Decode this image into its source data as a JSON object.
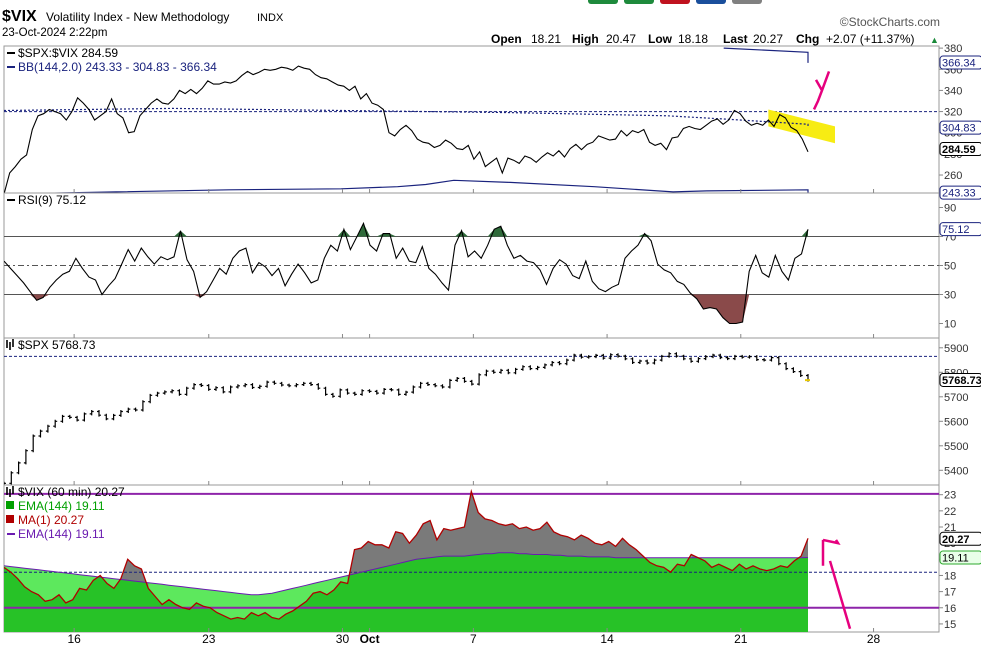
{
  "header": {
    "symbol": "$VIX",
    "name": "Volatility Index - New Methodology",
    "exchange": "INDX",
    "datetime": "23-Oct-2024 2:22pm",
    "brand": "©StockCharts.com",
    "quote": {
      "open_label": "Open",
      "open": "18.21",
      "high_label": "High",
      "high": "20.47",
      "low_label": "Low",
      "low": "18.18",
      "last_label": "Last",
      "last": "20.27",
      "chg_label": "Chg",
      "chg": "+2.07 (+11.37%)",
      "chg_arrow": "▲"
    },
    "strip_colors": [
      "#1e8a3c",
      "#1e8a3c",
      "#c0121f",
      "#1a4f9c",
      "#808080"
    ]
  },
  "chart_data": [
    {
      "type": "line",
      "panel": "ratio",
      "legend": [
        {
          "text": "$SPX:$VIX 284.59",
          "color": "#000000",
          "marker": "line"
        },
        {
          "text": "BB(144,2.0) 243.33 - 304.83 - 366.34",
          "color": "#1a237e",
          "marker": "line"
        }
      ],
      "ylim": [
        243,
        382
      ],
      "yticks": [
        260,
        280,
        300,
        320,
        340,
        360,
        380
      ],
      "price_tags": [
        {
          "label": "366.34",
          "value": 366.34,
          "style": "outline"
        },
        {
          "label": "304.83",
          "value": 304.83,
          "style": "outline"
        },
        {
          "label": "284.59",
          "value": 284.59,
          "style": "bold"
        },
        {
          "label": "243.33",
          "value": 243.33,
          "style": "outline"
        }
      ],
      "ref_line": 320,
      "series": [
        {
          "role": "SPX:VIX",
          "color": "#000000",
          "values": [
            242,
            262,
            268,
            275,
            279,
            303,
            316,
            318,
            322,
            320,
            318,
            312,
            320,
            333,
            328,
            322,
            312,
            316,
            320,
            332,
            318,
            314,
            300,
            301,
            316,
            322,
            328,
            332,
            328,
            327,
            332,
            340,
            337,
            341,
            337,
            342,
            349,
            346,
            346,
            348,
            347,
            349,
            354,
            358,
            355,
            357,
            360,
            359,
            360,
            362,
            361,
            359,
            363,
            361,
            360,
            355,
            352,
            351,
            348,
            345,
            344,
            340,
            344,
            332,
            337,
            328,
            326,
            322,
            300,
            297,
            303,
            307,
            302,
            294,
            291,
            290,
            286,
            288,
            293,
            290,
            285,
            284,
            288,
            275,
            282,
            268,
            272,
            276,
            262,
            276,
            274,
            271,
            278,
            276,
            272,
            277,
            281,
            278,
            283,
            277,
            285,
            289,
            284,
            289,
            291,
            297,
            295,
            293,
            294,
            302,
            297,
            302,
            300,
            303,
            291,
            288,
            290,
            284,
            295,
            296,
            304,
            306,
            304,
            303,
            307,
            311,
            313,
            308,
            312,
            321,
            318,
            311,
            307,
            309,
            307,
            312,
            306,
            317,
            314,
            305,
            302,
            294,
            282
          ]
        },
        {
          "role": "BB upper",
          "color": "#1a237e",
          "values": [
            [
              128,
              380
            ],
            [
              143,
              376
            ],
            [
              143,
              366
            ]
          ]
        },
        {
          "role": "BB middle",
          "color": "#1a237e",
          "dashed": true,
          "values": [
            [
              0,
              321
            ],
            [
              30,
              323
            ],
            [
              60,
              321
            ],
            [
              90,
              319
            ],
            [
              118,
              316
            ],
            [
              128,
              313
            ],
            [
              143,
              308
            ],
            [
              143,
              305
            ]
          ]
        },
        {
          "role": "BB lower",
          "color": "#1a237e",
          "values": [
            [
              0,
              242
            ],
            [
              20,
              244
            ],
            [
              40,
              246
            ],
            [
              60,
              247
            ],
            [
              70,
              249
            ],
            [
              75,
              251
            ],
            [
              80,
              255
            ],
            [
              90,
              253
            ],
            [
              105,
              249
            ],
            [
              119,
              244
            ],
            [
              125,
              245
            ],
            [
              143,
              246
            ],
            [
              143,
              243
            ]
          ]
        }
      ],
      "highlight_color": "#f7ec13",
      "annotation_color": "#e6007e"
    },
    {
      "type": "line",
      "panel": "rsi",
      "legend": [
        {
          "text": "RSI(9) 75.12",
          "color": "#000000",
          "marker": "line"
        }
      ],
      "ylim": [
        0,
        100
      ],
      "yticks": [
        10,
        30,
        50,
        70,
        90
      ],
      "overbought": 70,
      "oversold": 30,
      "midline": 50,
      "price_tags": [
        {
          "label": "75.12",
          "value": 75.12,
          "style": "outline"
        }
      ],
      "fill_over_color": "#2f6b3a",
      "fill_under_color": "#8a4a4a",
      "values": [
        53,
        48,
        43,
        38,
        32,
        26,
        28,
        35,
        40,
        44,
        46,
        55,
        48,
        42,
        40,
        30,
        36,
        41,
        51,
        61,
        53,
        62,
        56,
        51,
        56,
        54,
        56,
        74,
        54,
        46,
        28,
        32,
        40,
        48,
        44,
        55,
        60,
        62,
        45,
        52,
        49,
        43,
        48,
        36,
        44,
        51,
        45,
        38,
        40,
        55,
        64,
        60,
        75,
        61,
        70,
        79,
        64,
        60,
        72,
        72,
        55,
        62,
        53,
        52,
        63,
        48,
        44,
        38,
        33,
        64,
        74,
        56,
        60,
        55,
        64,
        75,
        77,
        64,
        55,
        57,
        53,
        52,
        47,
        37,
        48,
        54,
        51,
        43,
        41,
        53,
        39,
        34,
        32,
        35,
        37,
        55,
        60,
        64,
        72,
        67,
        51,
        47,
        45,
        39,
        37,
        31,
        27,
        20,
        21,
        20,
        14,
        10,
        10,
        11,
        46,
        57,
        45,
        42,
        57,
        46,
        40,
        55,
        58,
        75
      ]
    },
    {
      "type": "ohlc",
      "panel": "spx",
      "legend": [
        {
          "text": "$SPX 5768.73",
          "color": "#000000",
          "marker": "bars"
        }
      ],
      "ylim": [
        5340,
        5940
      ],
      "yticks": [
        5400,
        5500,
        5600,
        5700,
        5800,
        5900
      ],
      "price_tags": [
        {
          "label": "5768.73",
          "value": 5768.73,
          "style": "bold"
        }
      ],
      "ref_line": 5865,
      "closes": [
        5347,
        5390,
        5430,
        5480,
        5540,
        5560,
        5580,
        5600,
        5620,
        5616,
        5605,
        5630,
        5640,
        5625,
        5610,
        5624,
        5640,
        5650,
        5646,
        5680,
        5706,
        5715,
        5720,
        5725,
        5710,
        5735,
        5750,
        5746,
        5730,
        5737,
        5720,
        5740,
        5745,
        5750,
        5738,
        5743,
        5760,
        5755,
        5748,
        5745,
        5750,
        5755,
        5750,
        5735,
        5710,
        5702,
        5728,
        5715,
        5710,
        5725,
        5722,
        5715,
        5730,
        5728,
        5710,
        5719,
        5740,
        5755,
        5750,
        5745,
        5740,
        5767,
        5775,
        5763,
        5752,
        5790,
        5805,
        5800,
        5808,
        5798,
        5812,
        5823,
        5815,
        5820,
        5830,
        5840,
        5835,
        5850,
        5870,
        5862,
        5864,
        5869,
        5858,
        5872,
        5866,
        5855,
        5840,
        5846,
        5838,
        5850,
        5865,
        5876,
        5866,
        5855,
        5845,
        5856,
        5864,
        5870,
        5860,
        5856,
        5865,
        5862,
        5864,
        5852,
        5850,
        5860,
        5835,
        5815,
        5803,
        5787,
        5768
      ]
    },
    {
      "type": "area",
      "panel": "vix",
      "legend": [
        {
          "text": "$VIX (60 min) 20.27",
          "color": "#000000",
          "marker": "bars"
        },
        {
          "text": "EMA(144) 19.11",
          "color": "#00a000",
          "marker": "swatch"
        },
        {
          "text": "MA(1) 20.27",
          "color": "#b00000",
          "marker": "swatch"
        },
        {
          "text": "EMA(144) 19.11",
          "color": "#6a1bb0",
          "marker": "line"
        }
      ],
      "ylim": [
        14.5,
        23.6
      ],
      "yticks": [
        15,
        16,
        17,
        18,
        19,
        20,
        21,
        22,
        23
      ],
      "price_tags": [
        {
          "label": "20.27",
          "value": 20.27,
          "style": "bold"
        },
        {
          "label": "19.11",
          "value": 19.11,
          "style": "green"
        }
      ],
      "hlines": [
        {
          "value": 23.05,
          "color": "#8e24aa"
        },
        {
          "value": 16,
          "color": "#8e24aa"
        }
      ],
      "ref_line": 18.2,
      "ma1": [
        18.5,
        18.2,
        17.8,
        17.3,
        17.0,
        16.8,
        16.4,
        16.5,
        16.8,
        16.3,
        16.5,
        17.2,
        17.1,
        17.7,
        18.0,
        17.5,
        17.2,
        17.8,
        19.0,
        18.6,
        18.4,
        17.2,
        16.7,
        16.2,
        16.5,
        16.2,
        16.0,
        15.9,
        16.3,
        16.1,
        16.0,
        15.7,
        15.5,
        15.3,
        15.4,
        15.3,
        15.7,
        15.5,
        15.7,
        15.4,
        15.3,
        15.6,
        15.8,
        16.1,
        16.4,
        16.9,
        17.0,
        16.8,
        17.1,
        17.6,
        17.5,
        19.6,
        19.7,
        20.1,
        19.9,
        19.9,
        19.7,
        20.7,
        20.6,
        20.0,
        20.5,
        21.2,
        21.4,
        20.2,
        20.9,
        20.8,
        20.9,
        21.0,
        23.2,
        21.9,
        21.5,
        21.4,
        21.2,
        21.1,
        21.2,
        20.9,
        21.0,
        20.8,
        20.9,
        21.3,
        20.7,
        20.5,
        20.4,
        20.2,
        20.5,
        20.3,
        20.0,
        19.9,
        20.1,
        19.8,
        20.3,
        19.9,
        19.6,
        19.2,
        18.8,
        18.6,
        18.5,
        18.2,
        18.7,
        18.6,
        19.3,
        19.1,
        18.9,
        18.5,
        18.7,
        18.5,
        18.3,
        18.7,
        18.4,
        18.6,
        18.4,
        18.3,
        18.4,
        18.6,
        18.5,
        18.9,
        19.2,
        20.3
      ],
      "ema144": [
        18.6,
        18.55,
        18.5,
        18.45,
        18.4,
        18.35,
        18.3,
        18.25,
        18.2,
        18.15,
        18.1,
        18.05,
        18.0,
        17.95,
        17.9,
        17.85,
        17.8,
        17.75,
        17.7,
        17.65,
        17.6,
        17.55,
        17.5,
        17.45,
        17.4,
        17.35,
        17.3,
        17.25,
        17.2,
        17.15,
        17.1,
        17.05,
        17.0,
        16.95,
        16.9,
        16.85,
        16.8,
        16.8,
        16.85,
        16.9,
        17.0,
        17.1,
        17.2,
        17.3,
        17.4,
        17.5,
        17.6,
        17.7,
        17.8,
        17.9,
        18.0,
        18.1,
        18.2,
        18.3,
        18.4,
        18.5,
        18.6,
        18.7,
        18.8,
        18.9,
        19.0,
        19.05,
        19.1,
        19.15,
        19.2,
        19.2,
        19.2,
        19.2,
        19.25,
        19.3,
        19.35,
        19.35,
        19.4,
        19.4,
        19.4,
        19.35,
        19.35,
        19.3,
        19.3,
        19.3,
        19.25,
        19.25,
        19.2,
        19.2,
        19.2,
        19.15,
        19.15,
        19.15,
        19.15,
        19.1,
        19.1,
        19.1,
        19.1,
        19.1,
        19.1,
        19.1,
        19.1,
        19.1,
        19.1,
        19.1,
        19.1,
        19.1,
        19.1,
        19.1,
        19.1,
        19.1,
        19.1,
        19.1,
        19.1,
        19.1,
        19.1,
        19.1,
        19.1,
        19.1,
        19.1,
        19.1,
        19.1,
        19.11
      ],
      "fill_above_color": "#7a7a7a",
      "fill_below_color": "#5de85d",
      "ema_area_color": "#27c227"
    }
  ],
  "x_axis": {
    "ticks": [
      {
        "label": "16",
        "frac": 0.075,
        "bold": false
      },
      {
        "label": "23",
        "frac": 0.219,
        "bold": false
      },
      {
        "label": "30",
        "frac": 0.362,
        "bold": false
      },
      {
        "label": "Oct",
        "frac": 0.391,
        "bold": true
      },
      {
        "label": "7",
        "frac": 0.502,
        "bold": false
      },
      {
        "label": "14",
        "frac": 0.645,
        "bold": false
      },
      {
        "label": "21",
        "frac": 0.788,
        "bold": false
      },
      {
        "label": "28",
        "frac": 0.93,
        "bold": false
      }
    ]
  }
}
